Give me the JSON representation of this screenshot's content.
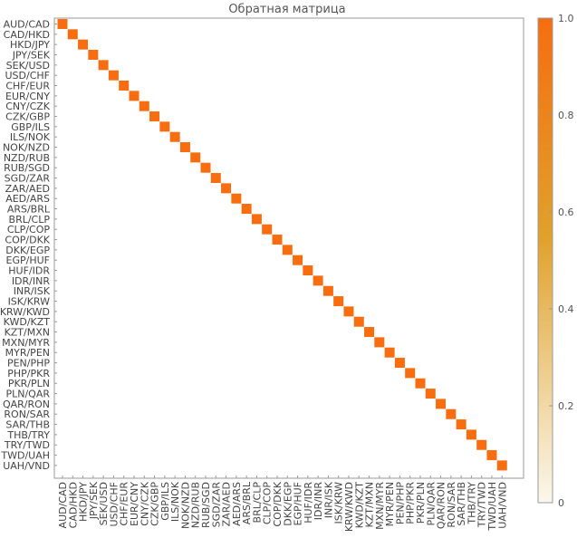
{
  "chart_data": {
    "type": "heatmap",
    "title": "Обратная матрица",
    "labels": [
      "AUD/CAD",
      "CAD/HKD",
      "HKD/JPY",
      "JPY/SEK",
      "SEK/USD",
      "USD/CHF",
      "CHF/EUR",
      "EUR/CNY",
      "CNY/CZK",
      "CZK/GBP",
      "GBP/ILS",
      "ILS/NOK",
      "NOK/NZD",
      "NZD/RUB",
      "RUB/SGD",
      "SGD/ZAR",
      "ZAR/AED",
      "AED/ARS",
      "ARS/BRL",
      "BRL/CLP",
      "CLP/COP",
      "COP/DKK",
      "DKK/EGP",
      "EGP/HUF",
      "HUF/IDR",
      "IDR/INR",
      "INR/ISK",
      "ISK/KRW",
      "KRW/KWD",
      "KWD/KZT",
      "KZT/MXN",
      "MXN/MYR",
      "MYR/PEN",
      "PEN/PHP",
      "PHP/PKR",
      "PKR/PLN",
      "PLN/QAR",
      "QAR/RON",
      "RON/SAR",
      "SAR/THB",
      "THB/TRY",
      "TRY/TWD",
      "TWD/UAH",
      "UAH/VND"
    ],
    "matrix": "identity",
    "diagonal_value": 1.0,
    "off_diagonal_value": 0.0,
    "colorbar": {
      "min": 0,
      "max": 1.0,
      "ticks": [
        "0",
        "0.2",
        "0.4",
        "0.6",
        "0.8",
        "1.0"
      ],
      "tick_values": [
        0,
        0.2,
        0.4,
        0.6,
        0.8,
        1.0
      ],
      "color_low": "#fbf8ec",
      "color_mid": "#e0a12a",
      "color_high": "#f76d0f"
    },
    "grid": false
  }
}
